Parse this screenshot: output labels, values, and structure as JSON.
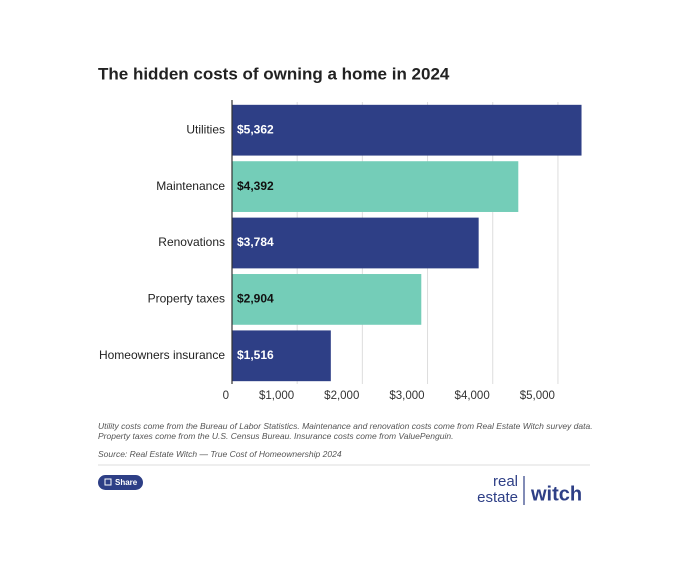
{
  "chart_data": {
    "type": "bar",
    "orientation": "horizontal",
    "title": "The hidden costs of owning a home in 2024",
    "categories": [
      "Utilities",
      "Maintenance",
      "Renovations",
      "Property taxes",
      "Homeowners insurance"
    ],
    "values": [
      5362,
      4392,
      3784,
      2904,
      1516
    ],
    "value_labels": [
      "$5,362",
      "$4,392",
      "$3,784",
      "$2,904",
      "$1,516"
    ],
    "colors": [
      "#2e3f86",
      "#74cdb8",
      "#2e3f86",
      "#74cdb8",
      "#2e3f86"
    ],
    "label_colors": [
      "#ffffff",
      "#111111",
      "#ffffff",
      "#111111",
      "#ffffff"
    ],
    "xlim": [
      0,
      5400
    ],
    "xticks": [
      0,
      {
        "value": 1000,
        "label": "$1,000"
      },
      {
        "value": 2000,
        "label": "$2,000"
      },
      {
        "value": 3000,
        "label": "$3,000"
      },
      {
        "value": 4000,
        "label": "$4,000"
      },
      {
        "value": 5000,
        "label": "$5,000"
      }
    ],
    "grid": true,
    "note": "Utility costs come from the Bureau of Labor Statistics. Maintenance and renovation costs come from Real Estate Witch survey data. Property taxes come from the U.S. Census Bureau. Insurance costs come from ValuePenguin.",
    "source": "Source: Real Estate Witch — True Cost of Homeownership 2024"
  },
  "share_button": "Share",
  "logo": {
    "line1": "real",
    "line2": "estate",
    "brand": "witch"
  }
}
